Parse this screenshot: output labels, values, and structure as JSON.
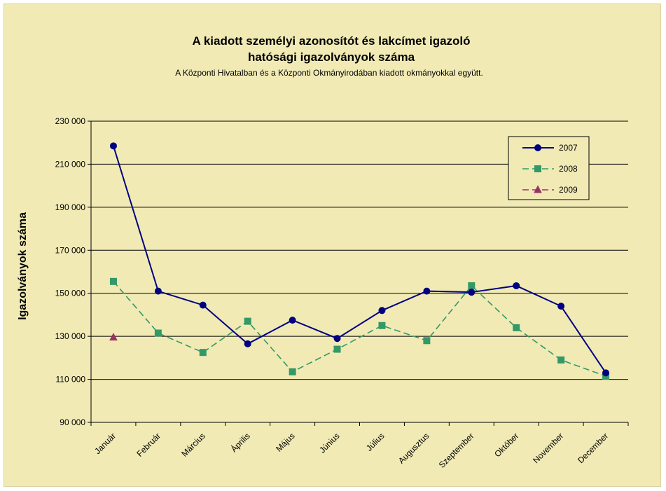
{
  "chart_data": {
    "type": "line",
    "title_line1": "A kiadott személyi azonosítót és lakcímet igazoló",
    "title_line2": "hatósági igazolványok száma",
    "subtitle": "A Központi Hivatalban és a Központi Okmányirodában kiadott okmányokkal együtt.",
    "ylabel": "Igazolványok száma",
    "ylim": [
      90000,
      230000
    ],
    "yticks": [
      "90 000",
      "110 000",
      "130 000",
      "150 000",
      "170 000",
      "190 000",
      "210 000",
      "230 000"
    ],
    "categories": [
      "Január",
      "Február",
      "Március",
      "Április",
      "Május",
      "Június",
      "Július",
      "Augusztus",
      "Szeptember",
      "Október",
      "November",
      "December"
    ],
    "legend_position": "top-right",
    "grid": true,
    "series": [
      {
        "name": "2007",
        "color": "#000080",
        "marker": "circle",
        "dash": "solid",
        "values": [
          218500,
          151000,
          144500,
          126500,
          137500,
          129000,
          142000,
          151000,
          150500,
          153500,
          144000,
          113000
        ]
      },
      {
        "name": "2008",
        "color": "#339966",
        "marker": "square",
        "dash": "dashed",
        "values": [
          155500,
          131500,
          122500,
          137000,
          113500,
          124000,
          135000,
          128000,
          153500,
          134000,
          119000,
          111500
        ]
      },
      {
        "name": "2009",
        "color": "#993366",
        "marker": "triangle",
        "dash": "dashed",
        "values": [
          129500,
          null,
          null,
          null,
          null,
          null,
          null,
          null,
          null,
          null,
          null,
          null
        ]
      }
    ]
  }
}
